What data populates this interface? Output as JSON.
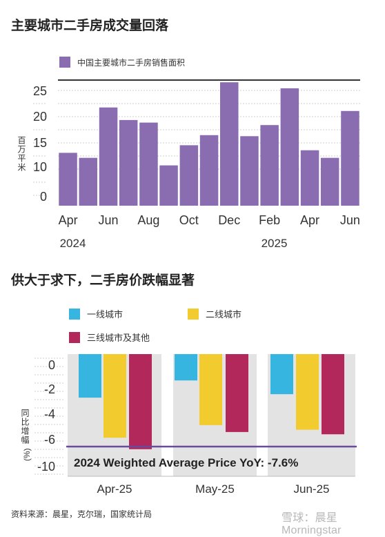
{
  "chart1_title": "主要城市二手房成交量回落",
  "chart2_title": "供大于求下，二手房价跌幅显著",
  "footer": "资料来源：晨星，克尔瑞，国家统计局",
  "watermark": "雪球：晨星Morningstar",
  "colors": {
    "purple": "#8a6db1",
    "tier1": "#35b5e0",
    "tier2": "#f2cc2e",
    "tier3": "#b3285b",
    "band": "#e3e3e3",
    "refline": "#6a4a9c"
  },
  "chart_data": [
    {
      "type": "bar",
      "title": "主要城市二手房成交量回落",
      "ylabel": "百万平米",
      "legend": "top-left",
      "grid": true,
      "series": [
        {
          "name": "中国主要城市二手房销售面积",
          "values": [
            10.5,
            9.5,
            19.5,
            17,
            16.5,
            8,
            12,
            14,
            24.5,
            13.8,
            16,
            23.3,
            11,
            9.5,
            18.8
          ]
        }
      ],
      "x_tick_labels": [
        "Apr",
        "Jun",
        "Aug",
        "Oct",
        "Dec",
        "Feb",
        "Apr",
        "Jun"
      ],
      "x_year_labels": [
        "2024",
        "2025"
      ],
      "y_tick_labels": [
        "25",
        "20",
        "15",
        "10",
        "0"
      ],
      "ylim": [
        0,
        25
      ]
    },
    {
      "type": "bar",
      "title": "供大于求下，二手房价跌幅显著",
      "ylabel": "同比增幅(%)",
      "legend": "top",
      "categories": [
        "Apr-25",
        "May-25",
        "Jun-25"
      ],
      "series": [
        {
          "name": "一线城市",
          "values": [
            -3.8,
            -2.3,
            -3.5
          ]
        },
        {
          "name": "二线城市",
          "values": [
            -7.3,
            -6.2,
            -6.6
          ]
        },
        {
          "name": "三线城市及其他",
          "values": [
            -8.3,
            -6.8,
            -7.0
          ]
        }
      ],
      "y_tick_labels": [
        "0",
        "-2",
        "-4",
        "-6",
        "-10"
      ],
      "ylim": [
        -10,
        0
      ],
      "annotation": "2024 Weighted Average Price YoY: -7.6%",
      "reference_value": -7.6
    }
  ]
}
